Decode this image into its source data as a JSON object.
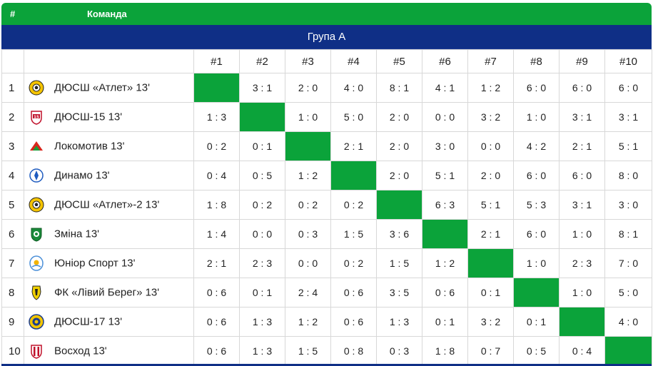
{
  "header": {
    "hash": "#",
    "team_label": "Команда"
  },
  "group_title": "Група А",
  "columns": [
    "#1",
    "#2",
    "#3",
    "#4",
    "#5",
    "#6",
    "#7",
    "#8",
    "#9",
    "#10"
  ],
  "colors": {
    "green": "#0ba33a",
    "navy": "#0f2f86"
  },
  "rows": [
    {
      "num": "1",
      "team": "ДЮСШ «Атлет» 13'",
      "logo": "atlet-ball-icon",
      "scores": [
        "",
        "3 : 1",
        "2 : 0",
        "4 : 0",
        "8 : 1",
        "4 : 1",
        "1 : 2",
        "6 : 0",
        "6 : 0",
        "6 : 0"
      ]
    },
    {
      "num": "2",
      "team": "ДЮСШ-15 13'",
      "logo": "dyussh15-shield-icon",
      "scores": [
        "1 : 3",
        "",
        "1 : 0",
        "5 : 0",
        "2 : 0",
        "0 : 0",
        "3 : 2",
        "1 : 0",
        "3 : 1",
        "3 : 1"
      ]
    },
    {
      "num": "3",
      "team": "Локомотив 13'",
      "logo": "lokomotiv-icon",
      "scores": [
        "0 : 2",
        "0 : 1",
        "",
        "2 : 1",
        "2 : 0",
        "3 : 0",
        "0 : 0",
        "4 : 2",
        "2 : 1",
        "5 : 1"
      ]
    },
    {
      "num": "4",
      "team": "Динамо 13'",
      "logo": "dynamo-icon",
      "scores": [
        "0 : 4",
        "0 : 5",
        "1 : 2",
        "",
        "2 : 0",
        "5 : 1",
        "2 : 0",
        "6 : 0",
        "6 : 0",
        "8 : 0"
      ]
    },
    {
      "num": "5",
      "team": "ДЮСШ «Атлет»-2 13'",
      "logo": "atlet-ball-icon",
      "scores": [
        "1 : 8",
        "0 : 2",
        "0 : 2",
        "0 : 2",
        "",
        "6 : 3",
        "5 : 1",
        "5 : 3",
        "3 : 1",
        "3 : 0"
      ]
    },
    {
      "num": "6",
      "team": "Зміна 13'",
      "logo": "zmina-shield-icon",
      "scores": [
        "1 : 4",
        "0 : 0",
        "0 : 3",
        "1 : 5",
        "3 : 6",
        "",
        "2 : 1",
        "6 : 0",
        "1 : 0",
        "8 : 1"
      ]
    },
    {
      "num": "7",
      "team": "Юніор Спорт 13'",
      "logo": "junior-sport-icon",
      "scores": [
        "2 : 1",
        "2 : 3",
        "0 : 0",
        "0 : 2",
        "1 : 5",
        "1 : 2",
        "",
        "1 : 0",
        "2 : 3",
        "7 : 0"
      ]
    },
    {
      "num": "8",
      "team": "ФК «Лівий Берег» 13'",
      "logo": "livyi-bereh-icon",
      "scores": [
        "0 : 6",
        "0 : 1",
        "2 : 4",
        "0 : 6",
        "3 : 5",
        "0 : 6",
        "0 : 1",
        "",
        "1 : 0",
        "5 : 0"
      ]
    },
    {
      "num": "9",
      "team": "ДЮСШ-17 13'",
      "logo": "dyussh17-icon",
      "scores": [
        "0 : 6",
        "1 : 3",
        "1 : 2",
        "0 : 6",
        "1 : 3",
        "0 : 1",
        "3 : 2",
        "0 : 1",
        "",
        "4 : 0"
      ]
    },
    {
      "num": "10",
      "team": "Восход 13'",
      "logo": "voskhod-shield-icon",
      "scores": [
        "0 : 6",
        "1 : 3",
        "1 : 5",
        "0 : 8",
        "0 : 3",
        "1 : 8",
        "0 : 7",
        "0 : 5",
        "0 : 4",
        ""
      ]
    }
  ]
}
